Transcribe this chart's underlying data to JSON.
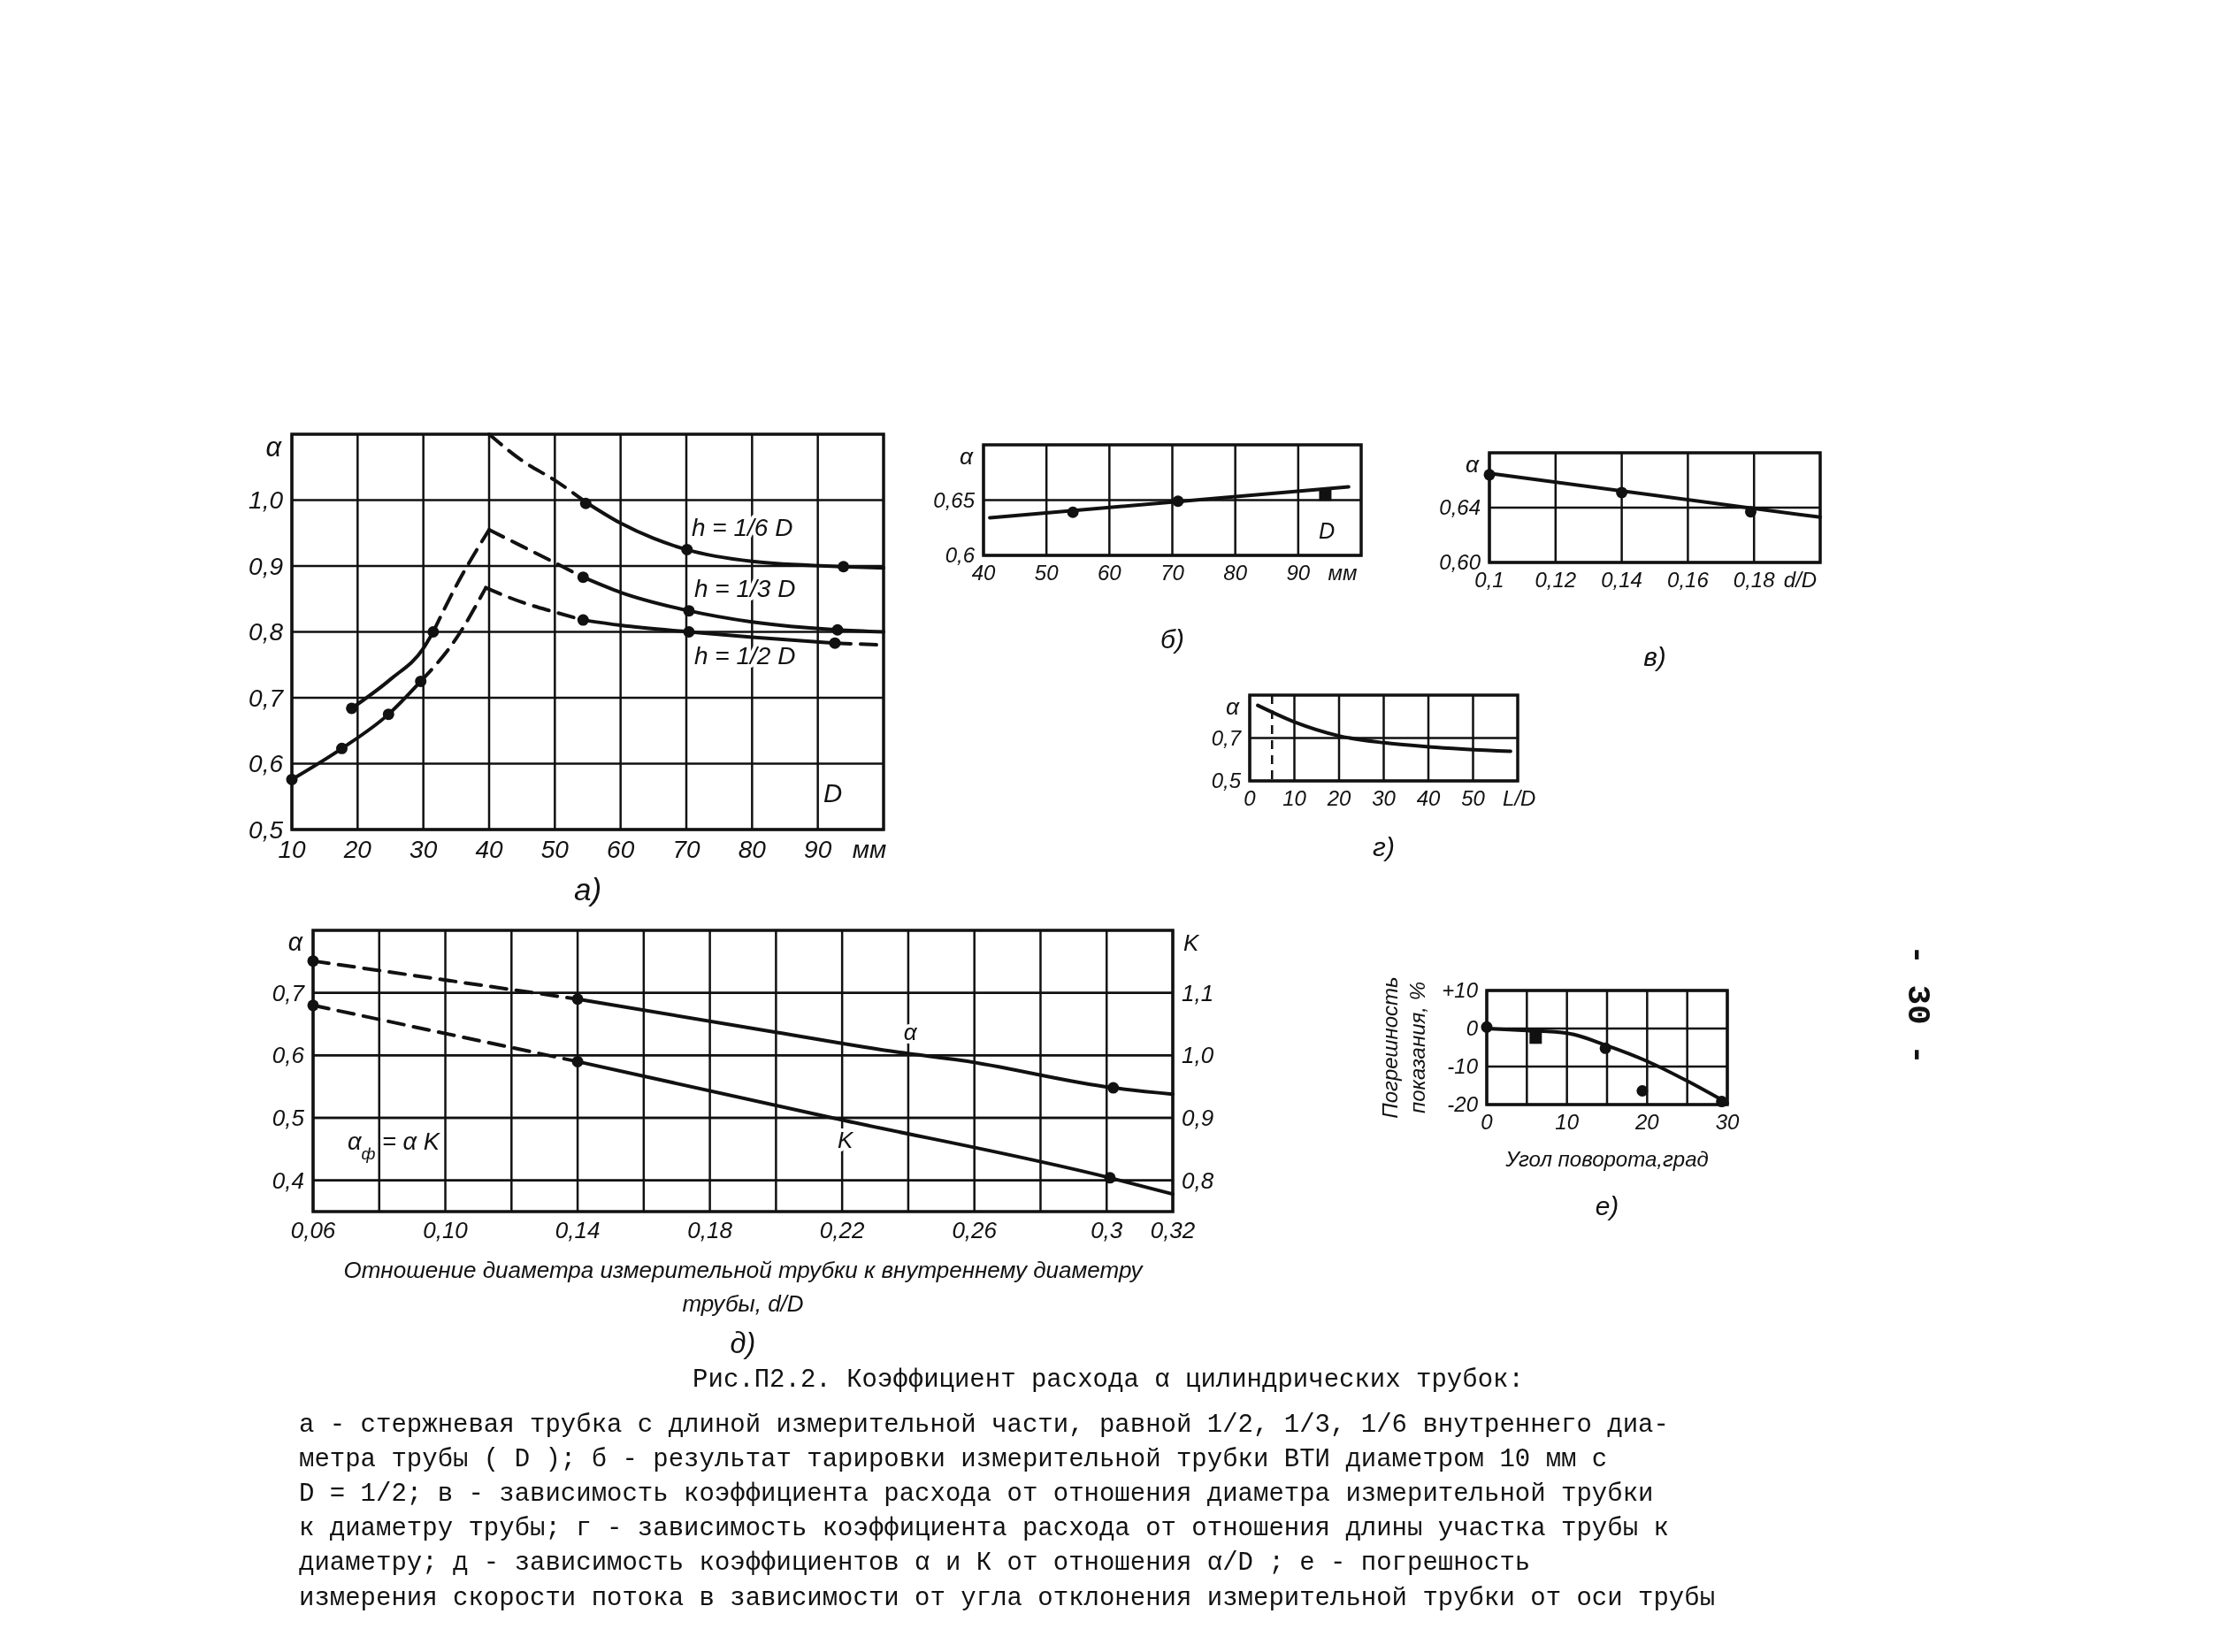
{
  "chart_data": [
    {
      "type": "line",
      "title": "а)",
      "xlabel": "мм",
      "ylabel": "α",
      "xlim": [
        10,
        100
      ],
      "xticks": [
        10,
        20,
        30,
        40,
        50,
        60,
        70,
        80,
        90
      ],
      "ylim": [
        0.5,
        1.1
      ],
      "yticks": [
        {
          "value": 0.5,
          "label": "0,5"
        },
        {
          "value": 0.6,
          "label": "0,6"
        },
        {
          "value": 0.7,
          "label": "0,7"
        },
        {
          "value": 0.8,
          "label": "0,8"
        },
        {
          "value": 0.9,
          "label": "0,9"
        },
        {
          "value": 1.0,
          "label": "1,0"
        }
      ],
      "grid": true,
      "annotations": [
        "D"
      ],
      "series": [
        {
          "type": "line",
          "line_style": "dashed",
          "color": "#111111",
          "x": [
            40,
            45,
            50,
            55
          ],
          "values": [
            1.1,
            1.06,
            1.03,
            0.995
          ]
        },
        {
          "type": "line",
          "name": "h = 1/6 D",
          "color": "#111111",
          "x": [
            55,
            60,
            65,
            70,
            80,
            94,
            100
          ],
          "values": [
            0.995,
            0.965,
            0.942,
            0.925,
            0.907,
            0.899,
            0.897
          ]
        },
        {
          "type": "scatter",
          "marker": "circle",
          "color": "#111111",
          "x": [
            54.7,
            70.1,
            93.9
          ],
          "values": [
            0.995,
            0.925,
            0.899
          ]
        },
        {
          "type": "line",
          "color": "#111111",
          "x": [
            19.1,
            25,
            30,
            31.5
          ],
          "values": [
            0.684,
            0.728,
            0.775,
            0.8
          ]
        },
        {
          "type": "line",
          "line_style": "dashed",
          "color": "#111111",
          "x": [
            31.5,
            35,
            40
          ],
          "values": [
            0.8,
            0.87,
            0.955
          ]
        },
        {
          "type": "line",
          "line_style": "dashed",
          "color": "#111111",
          "x": [
            40,
            45,
            50,
            54.3
          ],
          "values": [
            0.955,
            0.93,
            0.905,
            0.883
          ]
        },
        {
          "type": "line",
          "name": "h = 1/3 D",
          "color": "#111111",
          "x": [
            54.3,
            60,
            70.4,
            80,
            93,
            100
          ],
          "values": [
            0.883,
            0.86,
            0.832,
            0.815,
            0.803,
            0.8
          ]
        },
        {
          "type": "scatter",
          "marker": "circle",
          "color": "#111111",
          "x": [
            19.1,
            31.5,
            54.3,
            70.4,
            93
          ],
          "values": [
            0.684,
            0.8,
            0.883,
            0.832,
            0.803
          ]
        },
        {
          "type": "line",
          "color": "#111111",
          "x": [
            10,
            17.6,
            24.7,
            29.6
          ],
          "values": [
            0.576,
            0.623,
            0.675,
            0.725
          ]
        },
        {
          "type": "line",
          "line_style": "dashed",
          "color": "#111111",
          "x": [
            29.6,
            35,
            39.5
          ],
          "values": [
            0.725,
            0.79,
            0.867
          ]
        },
        {
          "type": "line",
          "line_style": "dashed",
          "color": "#111111",
          "x": [
            39.5,
            45,
            50,
            54.3
          ],
          "values": [
            0.867,
            0.845,
            0.83,
            0.818
          ]
        },
        {
          "type": "line",
          "name": "h = 1/2 D",
          "color": "#111111",
          "x": [
            54.3,
            60,
            70.4,
            80,
            92.6
          ],
          "values": [
            0.818,
            0.81,
            0.8,
            0.792,
            0.783
          ]
        },
        {
          "type": "line",
          "line_style": "dashed",
          "color": "#111111",
          "x": [
            92.6,
            100
          ],
          "values": [
            0.783,
            0.78
          ]
        },
        {
          "type": "scatter",
          "marker": "circle",
          "color": "#111111",
          "x": [
            10,
            17.6,
            24.7,
            29.6,
            54.3,
            70.4,
            92.6
          ],
          "values": [
            0.576,
            0.623,
            0.675,
            0.725,
            0.818,
            0.8,
            0.783
          ]
        }
      ]
    },
    {
      "type": "line",
      "title": "б)",
      "xlabel": "мм",
      "ylabel": "α",
      "xlim": [
        40,
        100
      ],
      "xticks": [
        40,
        50,
        60,
        70,
        80,
        90
      ],
      "ylim": [
        0.6,
        0.7
      ],
      "yticks": [
        {
          "value": 0.6,
          "label": "0,6"
        },
        {
          "value": 0.65,
          "label": "0,65"
        }
      ],
      "grid": true,
      "annotations": [
        "D"
      ],
      "series": [
        {
          "type": "line",
          "color": "#111111",
          "x": [
            41,
            98
          ],
          "values": [
            0.634,
            0.662
          ]
        },
        {
          "type": "scatter",
          "marker": "circle",
          "color": "#111111",
          "x": [
            54.2,
            70.9
          ],
          "values": [
            0.639,
            0.649
          ]
        },
        {
          "type": "scatter",
          "marker": "square",
          "color": "#111111",
          "x": [
            94.3
          ],
          "values": [
            0.655
          ]
        }
      ]
    },
    {
      "type": "line",
      "title": "в)",
      "xlabel": "d/D",
      "ylabel": "α",
      "xlim": [
        0.1,
        0.2
      ],
      "xticks": [
        {
          "value": 0.1,
          "label": "0,1"
        },
        {
          "value": 0.12,
          "label": "0,12"
        },
        {
          "value": 0.14,
          "label": "0,14"
        },
        {
          "value": 0.16,
          "label": "0,16"
        },
        {
          "value": 0.18,
          "label": "0,18"
        }
      ],
      "ylim": [
        0.6,
        0.68
      ],
      "yticks": [
        {
          "value": 0.6,
          "label": "0,60"
        },
        {
          "value": 0.64,
          "label": "0,64"
        }
      ],
      "grid": true,
      "series": [
        {
          "type": "line",
          "color": "#111111",
          "x": [
            0.1,
            0.2
          ],
          "values": [
            0.665,
            0.633
          ]
        },
        {
          "type": "scatter",
          "marker": "circle",
          "color": "#111111",
          "x": [
            0.1,
            0.14,
            0.179
          ],
          "values": [
            0.664,
            0.651,
            0.637
          ]
        }
      ]
    },
    {
      "type": "line",
      "title": "г)",
      "xlabel": "L/D",
      "ylabel": "α",
      "xlim": [
        0,
        60
      ],
      "xticks": [
        0,
        10,
        20,
        30,
        40,
        50
      ],
      "ylim": [
        0.5,
        0.9
      ],
      "yticks": [
        {
          "value": 0.5,
          "label": "0,5"
        },
        {
          "value": 0.7,
          "label": "0,7"
        }
      ],
      "grid": true,
      "ref_lines": [
        {
          "axis": "x",
          "value": 5,
          "line_style": "dashed"
        }
      ],
      "series": [
        {
          "type": "line",
          "color": "#111111",
          "x": [
            1.8,
            10,
            20,
            30,
            40,
            58.4
          ],
          "values": [
            0.852,
            0.775,
            0.71,
            0.678,
            0.659,
            0.638
          ]
        }
      ]
    },
    {
      "type": "line",
      "title": "д)",
      "xlabel": "Отношение диаметра измерительной трубки к внутреннему диаметру трубы, d/D",
      "ylabel": "α",
      "y2label": "K",
      "xlim": [
        0.06,
        0.32
      ],
      "xticks": [
        {
          "value": 0.06,
          "label": "0,06"
        },
        {
          "value": 0.08,
          "label": null
        },
        {
          "value": 0.1,
          "label": "0,10"
        },
        {
          "value": 0.12,
          "label": null
        },
        {
          "value": 0.14,
          "label": "0,14"
        },
        {
          "value": 0.16,
          "label": null
        },
        {
          "value": 0.18,
          "label": "0,18"
        },
        {
          "value": 0.2,
          "label": null
        },
        {
          "value": 0.22,
          "label": "0,22"
        },
        {
          "value": 0.24,
          "label": null
        },
        {
          "value": 0.26,
          "label": "0,26"
        },
        {
          "value": 0.28,
          "label": null
        },
        {
          "value": 0.3,
          "label": "0,3"
        },
        {
          "value": 0.32,
          "label": "0,32"
        }
      ],
      "ylim": [
        0.35,
        0.8
      ],
      "yticks": [
        {
          "value": 0.4,
          "label": "0,4"
        },
        {
          "value": 0.5,
          "label": "0,5"
        },
        {
          "value": 0.6,
          "label": "0,6"
        },
        {
          "value": 0.7,
          "label": "0,7"
        }
      ],
      "y2lim": [
        0.75,
        1.2
      ],
      "y2ticks": [
        {
          "value": 0.8,
          "label": "0,8"
        },
        {
          "value": 0.9,
          "label": "0,9"
        },
        {
          "value": 1.0,
          "label": "1,0"
        },
        {
          "value": 1.1,
          "label": "1,1"
        }
      ],
      "grid": true,
      "annotations": [
        "α$_{ф}$ = α K"
      ],
      "series": [
        {
          "type": "line",
          "line_style": "dashed",
          "color": "#111111",
          "x": [
            0.06,
            0.14
          ],
          "values": [
            0.751,
            0.69
          ]
        },
        {
          "type": "line",
          "name": "α",
          "color": "#111111",
          "x": [
            0.14,
            0.2,
            0.237,
            0.256,
            0.302,
            0.32
          ],
          "values": [
            0.69,
            0.637,
            0.605,
            0.592,
            0.548,
            0.538
          ]
        },
        {
          "type": "scatter",
          "marker": "circle",
          "color": "#111111",
          "x": [
            0.06,
            0.14,
            0.302
          ],
          "values": [
            0.751,
            0.69,
            0.548
          ]
        },
        {
          "type": "line",
          "axis": "y2",
          "line_style": "dashed",
          "color": "#111111",
          "x": [
            0.06,
            0.14
          ],
          "values": [
            1.08,
            0.99
          ]
        },
        {
          "type": "line",
          "axis": "y2",
          "name": "K",
          "color": "#111111",
          "x": [
            0.14,
            0.217,
            0.301,
            0.32
          ],
          "values": [
            0.99,
            0.9,
            0.804,
            0.778
          ]
        },
        {
          "type": "scatter",
          "axis": "y2",
          "marker": "circle",
          "color": "#111111",
          "x": [
            0.06,
            0.14,
            0.301
          ],
          "values": [
            1.08,
            0.99,
            0.804
          ]
        }
      ]
    },
    {
      "type": "line",
      "title": "е)",
      "xlabel": "Угол поворота,град",
      "ylabel": "Погрешность показания, %",
      "xlim": [
        0,
        30
      ],
      "xticks": [
        0,
        {
          "value": 5,
          "label": null
        },
        10,
        {
          "value": 15,
          "label": null
        },
        20,
        {
          "value": 25,
          "label": null
        },
        30
      ],
      "ylim": [
        -20,
        10
      ],
      "yticks": [
        {
          "value": 10,
          "label": "+10"
        },
        0,
        -10,
        -20
      ],
      "grid": true,
      "series": [
        {
          "type": "line",
          "color": "#111111",
          "x": [
            0,
            5,
            10,
            15,
            20,
            25,
            30
          ],
          "values": [
            0,
            -0.5,
            -1.2,
            -4.5,
            -8.6,
            -13.8,
            -19.6
          ]
        },
        {
          "type": "scatter",
          "marker": "circle",
          "color": "#111111",
          "x": [
            0,
            14.8,
            19.4,
            29.3
          ],
          "values": [
            0.4,
            -5.2,
            -16.4,
            -19.2
          ]
        },
        {
          "type": "scatter",
          "marker": "square",
          "color": "#111111",
          "x": [
            6.1
          ],
          "values": [
            -2.4
          ]
        }
      ]
    },
    {
      "type": "other",
      "title": "Рис.П2.2. Коэффициент расхода α цилиндрических трубок:",
      "subtitle": "- 30 -",
      "annotations": [
        "а - стержневая трубка с длиной измерительной части, равной 1/2, 1/3, 1/6 внутреннего диа-",
        "метра трубы ( D ); б - результат тарировки измерительной трубки ВТИ диаметром 10 мм с",
        "D = 1/2; в - зависимость коэффициента расхода от отношения диаметра измерительной трубки",
        "к диаметру трубы; г - зависимость коэффициента расхода от отношения длины участка трубы к",
        "диаметру; д - зависимость коэффициентов α и К от отношения α/D ; е - погрешность",
        "измерения скорости потока в зависимости от угла отклонения измерительной трубки от оси трубы"
      ]
    }
  ]
}
